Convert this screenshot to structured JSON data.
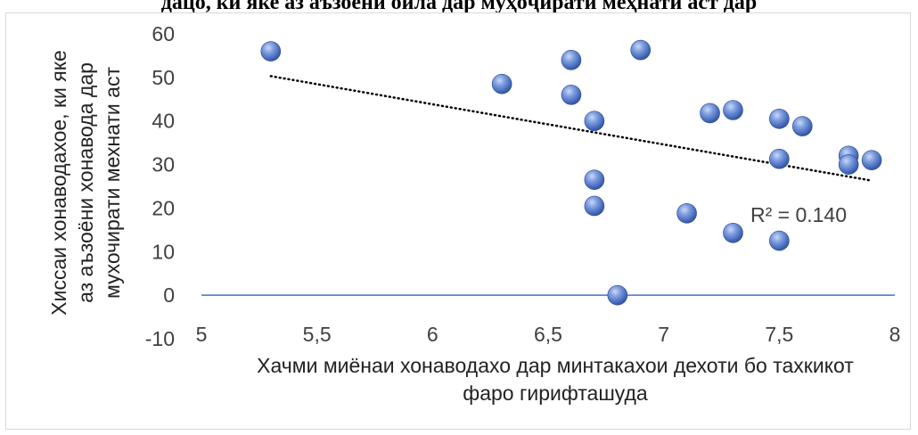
{
  "top_title": "дацо, ки яке аз аъзоёни оила дар муҳоҷирати меҳнатӣ аст дар",
  "chart_data": {
    "type": "scatter",
    "title": "",
    "xlabel": [
      "Хачми миёнаи хонаводахо дар минтакахои дехоти бо тахкикот",
      "фаро гирифташуда"
    ],
    "ylabel": [
      "Хиссаи хонаводахое, ки яке",
      "аз аъзоёни хонавода дар",
      "мухочирати мехнати аст"
    ],
    "xlim": [
      5,
      8
    ],
    "ylim": [
      -10,
      60
    ],
    "x_ticks": [
      5,
      5.5,
      6,
      6.5,
      7,
      7.5,
      8
    ],
    "x_tick_labels": [
      "5",
      "5,5",
      "6",
      "6,5",
      "7",
      "7,5",
      "8"
    ],
    "y_ticks": [
      -10,
      0,
      10,
      20,
      30,
      40,
      50,
      60
    ],
    "y_tick_labels": [
      "-10",
      "0",
      "10",
      "20",
      "30",
      "40",
      "50",
      "60"
    ],
    "grid": false,
    "series": [
      {
        "points": [
          {
            "x": 5.3,
            "y": 56
          },
          {
            "x": 6.3,
            "y": 48.5
          },
          {
            "x": 6.6,
            "y": 54
          },
          {
            "x": 6.6,
            "y": 46
          },
          {
            "x": 6.7,
            "y": 40
          },
          {
            "x": 6.7,
            "y": 26.5
          },
          {
            "x": 6.7,
            "y": 20.5
          },
          {
            "x": 6.8,
            "y": 0
          },
          {
            "x": 6.9,
            "y": 56.3
          },
          {
            "x": 7.1,
            "y": 18.8
          },
          {
            "x": 7.2,
            "y": 41.8
          },
          {
            "x": 7.3,
            "y": 42.5
          },
          {
            "x": 7.3,
            "y": 14.3
          },
          {
            "x": 7.5,
            "y": 40.5
          },
          {
            "x": 7.5,
            "y": 31.3
          },
          {
            "x": 7.5,
            "y": 12.5
          },
          {
            "x": 7.6,
            "y": 38.8
          },
          {
            "x": 7.8,
            "y": 32
          },
          {
            "x": 7.8,
            "y": 30
          },
          {
            "x": 7.9,
            "y": 31
          }
        ],
        "color": "#4f74c8"
      }
    ],
    "trendline": {
      "type": "linear",
      "style": "dotted",
      "color": "#000000",
      "x_start": 5.3,
      "y_start": 50.3,
      "x_end": 7.9,
      "y_end": 26.3
    },
    "annotation": "R² = 0.140",
    "zero_line_color": "#4472c4"
  }
}
